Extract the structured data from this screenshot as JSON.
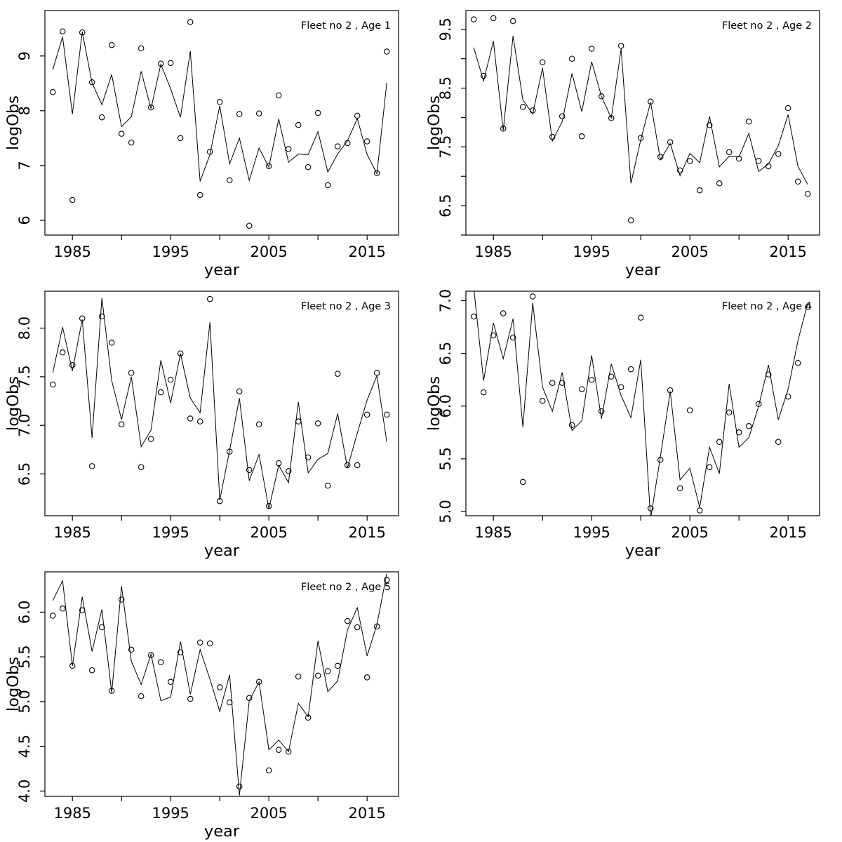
{
  "figure": {
    "background": "#ffffff",
    "ink_color": "#000000",
    "xlabel": "year",
    "ylabel": "logObs"
  },
  "chart_data": [
    {
      "type": "line",
      "title": "Fleet no 2 , Age 1",
      "xlabel": "year",
      "ylabel": "logObs",
      "legend": null,
      "grid": false,
      "x": [
        1983,
        1984,
        1985,
        1986,
        1987,
        1988,
        1989,
        1990,
        1991,
        1992,
        1993,
        1994,
        1995,
        1996,
        1997,
        1998,
        1999,
        2000,
        2001,
        2002,
        2003,
        2004,
        2005,
        2006,
        2007,
        2008,
        2009,
        2010,
        2011,
        2012,
        2013,
        2014,
        2015,
        2016,
        2017
      ],
      "series": [
        {
          "name": "fitted line",
          "style": "line",
          "values": [
            8.75,
            9.35,
            7.94,
            9.44,
            8.51,
            8.11,
            8.66,
            7.71,
            7.89,
            8.72,
            8.04,
            8.85,
            8.4,
            7.88,
            9.09,
            6.71,
            7.2,
            8.09,
            7.03,
            7.5,
            6.73,
            7.32,
            6.97,
            7.85,
            7.06,
            7.21,
            7.2,
            7.62,
            6.88,
            7.21,
            7.45,
            7.86,
            7.2,
            6.85,
            8.51
          ]
        },
        {
          "name": "observed logObs",
          "style": "points",
          "values": [
            8.34,
            9.45,
            6.37,
            9.43,
            8.52,
            7.88,
            9.2,
            7.58,
            7.42,
            9.14,
            8.06,
            8.86,
            8.87,
            7.5,
            9.62,
            6.46,
            7.25,
            8.16,
            6.73,
            7.94,
            5.9,
            7.95,
            6.99,
            8.28,
            7.3,
            7.74,
            6.97,
            7.96,
            6.64,
            7.35,
            7.41,
            7.91,
            7.44,
            6.86,
            9.08
          ]
        }
      ],
      "xlim": [
        1982.2,
        2018.2
      ],
      "ylim": [
        5.73,
        9.83
      ],
      "xticks": {
        "values": [
          1985,
          1990,
          1995,
          2000,
          2005,
          2010,
          2015
        ],
        "labels": [
          "1985",
          "",
          "1995",
          "",
          "2005",
          "",
          "2015"
        ]
      },
      "yticks": {
        "values": [
          6,
          7,
          8,
          9
        ],
        "labels": [
          "6",
          "7",
          "8",
          "9"
        ]
      }
    },
    {
      "type": "line",
      "title": "Fleet no 2 , Age 2",
      "xlabel": "year",
      "ylabel": "logObs",
      "legend": null,
      "grid": false,
      "x": [
        1983,
        1984,
        1985,
        1986,
        1987,
        1988,
        1989,
        1990,
        1991,
        1992,
        1993,
        1994,
        1995,
        1996,
        1997,
        1998,
        1999,
        2000,
        2001,
        2002,
        2003,
        2004,
        2005,
        2006,
        2007,
        2008,
        2009,
        2010,
        2011,
        2012,
        2013,
        2014,
        2015,
        2016,
        2017
      ],
      "series": [
        {
          "name": "fitted line",
          "style": "line",
          "values": [
            9.19,
            8.62,
            9.3,
            7.78,
            9.39,
            8.3,
            8.06,
            8.84,
            7.6,
            7.93,
            8.75,
            8.1,
            8.95,
            8.36,
            7.99,
            9.17,
            6.88,
            7.62,
            8.26,
            7.28,
            7.56,
            7.01,
            7.39,
            7.23,
            8.02,
            7.16,
            7.34,
            7.33,
            7.73,
            7.08,
            7.21,
            7.52,
            8.05,
            7.17,
            6.86
          ]
        },
        {
          "name": "observed logObs",
          "style": "points",
          "values": [
            9.67,
            8.71,
            9.69,
            7.81,
            9.64,
            8.18,
            8.12,
            8.94,
            7.67,
            8.02,
            9.0,
            7.68,
            9.17,
            8.36,
            7.99,
            9.22,
            6.25,
            7.65,
            8.27,
            7.33,
            7.58,
            7.1,
            7.26,
            6.76,
            7.87,
            6.88,
            7.41,
            7.3,
            7.93,
            7.26,
            7.17,
            7.38,
            8.16,
            6.91,
            6.7
          ]
        }
      ],
      "xlim": [
        1982.2,
        2018.2
      ],
      "ylim": [
        6.0,
        9.82
      ],
      "xticks": {
        "values": [
          1985,
          1990,
          1995,
          2000,
          2005,
          2010,
          2015
        ],
        "labels": [
          "1985",
          "",
          "1995",
          "",
          "2005",
          "",
          "2015"
        ]
      },
      "yticks": {
        "values": [
          6.0,
          6.5,
          7.0,
          7.5,
          8.0,
          8.5,
          9.0,
          9.5
        ],
        "labels": [
          "",
          "6.5",
          "",
          "7.5",
          "",
          "8.5",
          "",
          "9.5"
        ]
      }
    },
    {
      "type": "line",
      "title": "Fleet no 2 , Age 3",
      "xlabel": "year",
      "ylabel": "logObs",
      "legend": null,
      "grid": false,
      "x": [
        1983,
        1984,
        1985,
        1986,
        1987,
        1988,
        1989,
        1990,
        1991,
        1992,
        1993,
        1994,
        1995,
        1996,
        1997,
        1998,
        1999,
        2000,
        2001,
        2002,
        2003,
        2004,
        2005,
        2006,
        2007,
        2008,
        2009,
        2010,
        2011,
        2012,
        2013,
        2014,
        2015,
        2016,
        2017
      ],
      "series": [
        {
          "name": "fitted line",
          "style": "line",
          "values": [
            7.54,
            8.01,
            7.56,
            8.09,
            6.87,
            8.31,
            7.46,
            7.06,
            7.5,
            6.78,
            6.95,
            7.67,
            7.23,
            7.74,
            7.28,
            7.13,
            8.06,
            6.23,
            6.74,
            7.28,
            6.43,
            6.7,
            6.14,
            6.59,
            6.41,
            7.24,
            6.51,
            6.65,
            6.71,
            7.12,
            6.56,
            6.92,
            7.26,
            7.51,
            6.83
          ]
        },
        {
          "name": "observed logObs",
          "style": "points",
          "values": [
            7.42,
            7.75,
            7.62,
            8.1,
            6.58,
            8.12,
            7.85,
            7.01,
            7.54,
            6.57,
            6.86,
            7.34,
            7.47,
            7.74,
            7.07,
            7.04,
            8.3,
            6.22,
            6.73,
            7.35,
            6.54,
            7.01,
            6.17,
            6.61,
            6.53,
            7.04,
            6.67,
            7.02,
            6.38,
            7.53,
            6.59,
            6.59,
            7.11,
            7.54,
            7.11
          ]
        }
      ],
      "xlim": [
        1982.2,
        2018.2
      ],
      "ylim": [
        6.07,
        8.38
      ],
      "xticks": {
        "values": [
          1985,
          1990,
          1995,
          2000,
          2005,
          2010,
          2015
        ],
        "labels": [
          "1985",
          "",
          "1995",
          "",
          "2005",
          "",
          "2015"
        ]
      },
      "yticks": {
        "values": [
          6.5,
          7.0,
          7.5,
          8.0
        ],
        "labels": [
          "6.5",
          "7.0",
          "7.5",
          "8.0"
        ]
      }
    },
    {
      "type": "line",
      "title": "Fleet no 2 , Age 4",
      "xlabel": "year",
      "ylabel": "logObs",
      "legend": null,
      "grid": false,
      "x": [
        1983,
        1984,
        1985,
        1986,
        1987,
        1988,
        1989,
        1990,
        1991,
        1992,
        1993,
        1994,
        1995,
        1996,
        1997,
        1998,
        1999,
        2000,
        2001,
        2002,
        2003,
        2004,
        2005,
        2006,
        2007,
        2008,
        2009,
        2010,
        2011,
        2012,
        2013,
        2014,
        2015,
        2016,
        2017
      ],
      "series": [
        {
          "name": "fitted line",
          "style": "line",
          "values": [
            7.12,
            6.24,
            6.79,
            6.45,
            6.83,
            5.8,
            6.98,
            6.18,
            5.95,
            6.32,
            5.77,
            5.86,
            6.48,
            5.88,
            6.4,
            6.1,
            5.89,
            6.44,
            4.93,
            5.52,
            6.14,
            5.3,
            5.41,
            5.04,
            5.61,
            5.36,
            6.21,
            5.61,
            5.7,
            6.0,
            6.39,
            5.87,
            6.16,
            6.62,
            6.98
          ]
        },
        {
          "name": "observed logObs",
          "style": "points",
          "values": [
            6.85,
            6.13,
            6.67,
            6.88,
            6.65,
            5.28,
            7.04,
            6.05,
            6.22,
            6.22,
            5.82,
            6.16,
            6.25,
            5.95,
            6.28,
            6.18,
            6.35,
            6.84,
            5.03,
            5.49,
            6.15,
            5.22,
            5.96,
            5.01,
            5.42,
            5.66,
            5.94,
            5.75,
            5.81,
            6.02,
            6.3,
            5.66,
            6.09,
            6.41,
            6.94
          ]
        }
      ],
      "xlim": [
        1982.2,
        2018.2
      ],
      "ylim": [
        4.96,
        7.09
      ],
      "xticks": {
        "values": [
          1985,
          1990,
          1995,
          2000,
          2005,
          2010,
          2015
        ],
        "labels": [
          "1985",
          "",
          "1995",
          "",
          "2005",
          "",
          "2015"
        ]
      },
      "yticks": {
        "values": [
          5.0,
          5.5,
          6.0,
          6.5,
          7.0
        ],
        "labels": [
          "5.0",
          "5.5",
          "6.0",
          "6.5",
          "7.0"
        ]
      }
    },
    {
      "type": "line",
      "title": "Fleet no 2 , Age 5",
      "xlabel": "year",
      "ylabel": "logObs",
      "legend": null,
      "grid": false,
      "x": [
        1983,
        1984,
        1985,
        1986,
        1987,
        1988,
        1989,
        1990,
        1991,
        1992,
        1993,
        1994,
        1995,
        1996,
        1997,
        1998,
        1999,
        2000,
        2001,
        2002,
        2003,
        2004,
        2005,
        2006,
        2007,
        2008,
        2009,
        2010,
        2011,
        2012,
        2013,
        2014,
        2015,
        2016,
        2017
      ],
      "series": [
        {
          "name": "fitted line",
          "style": "line",
          "values": [
            6.13,
            6.35,
            5.4,
            6.17,
            5.56,
            6.03,
            5.1,
            6.29,
            5.45,
            5.19,
            5.53,
            5.01,
            5.05,
            5.67,
            5.08,
            5.58,
            5.25,
            4.89,
            5.3,
            3.95,
            5.01,
            5.22,
            4.46,
            4.57,
            4.44,
            4.98,
            4.83,
            5.68,
            5.11,
            5.23,
            5.8,
            6.05,
            5.51,
            5.86,
            6.43
          ]
        },
        {
          "name": "observed logObs",
          "style": "points",
          "values": [
            5.96,
            6.04,
            5.4,
            6.02,
            5.35,
            5.83,
            5.12,
            6.14,
            5.58,
            5.06,
            5.52,
            5.44,
            5.22,
            5.55,
            5.03,
            5.66,
            5.65,
            5.16,
            4.99,
            4.05,
            5.04,
            5.22,
            4.23,
            4.46,
            4.44,
            5.28,
            4.82,
            5.29,
            5.34,
            5.4,
            5.9,
            5.83,
            5.27,
            5.84,
            6.36
          ]
        }
      ],
      "xlim": [
        1982.2,
        2018.2
      ],
      "ylim": [
        3.94,
        6.45
      ],
      "xticks": {
        "values": [
          1985,
          1990,
          1995,
          2000,
          2005,
          2010,
          2015
        ],
        "labels": [
          "1985",
          "",
          "1995",
          "",
          "2005",
          "",
          "2015"
        ]
      },
      "yticks": {
        "values": [
          4.0,
          4.5,
          5.0,
          5.5,
          6.0
        ],
        "labels": [
          "4.0",
          "4.5",
          "5.0",
          "5.5",
          "6.0"
        ]
      }
    }
  ]
}
